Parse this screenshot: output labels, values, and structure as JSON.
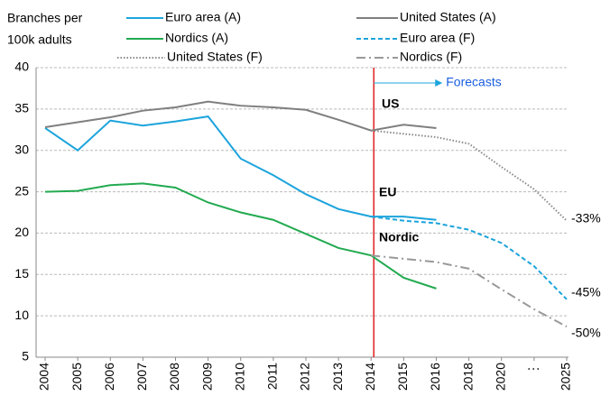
{
  "chart_data": {
    "type": "line",
    "y_axis_label": [
      "Branches per",
      "100k adults"
    ],
    "categories": [
      "2004",
      "2005",
      "2006",
      "2007",
      "2008",
      "2009",
      "2010",
      "2011",
      "2012",
      "2013",
      "2014",
      "2015",
      "2016",
      "2018",
      "2020",
      "⋮",
      "2025"
    ],
    "series": [
      {
        "name": "Euro area (A)",
        "color": "#1ca4dc",
        "dash": "solid",
        "values": [
          32.7,
          30,
          33.6,
          33,
          33.5,
          34.1,
          29,
          27,
          24.7,
          22.9,
          22,
          22,
          21.6,
          null,
          null,
          null,
          null
        ]
      },
      {
        "name": "United States (A)",
        "color": "#7f7f7f",
        "dash": "solid",
        "values": [
          32.8,
          33.4,
          34,
          34.8,
          35.2,
          35.9,
          35.4,
          35.2,
          34.9,
          33.7,
          32.4,
          33.1,
          32.7,
          null,
          null,
          null,
          null
        ]
      },
      {
        "name": "Nordics (A)",
        "color": "#22aa50",
        "dash": "solid",
        "values": [
          25,
          25.1,
          25.8,
          26,
          25.5,
          23.7,
          22.5,
          21.6,
          19.9,
          18.2,
          17.3,
          14.6,
          13.3,
          null,
          null,
          null,
          null
        ]
      },
      {
        "name": "Euro area (F)",
        "color": "#1ca4dc",
        "dash": "dashed",
        "values": [
          null,
          null,
          null,
          null,
          null,
          null,
          null,
          null,
          null,
          null,
          22,
          21.5,
          21.2,
          20.4,
          18.8,
          16,
          12
        ]
      },
      {
        "name": "United States (F)",
        "color": "#8a8a8a",
        "dash": "dotted",
        "values": [
          null,
          null,
          null,
          null,
          null,
          null,
          null,
          null,
          null,
          null,
          32.4,
          32,
          31.6,
          30.8,
          28,
          25.3,
          21.5
        ]
      },
      {
        "name": "Nordics (F)",
        "color": "#999999",
        "dash": "dashdot",
        "values": [
          null,
          null,
          null,
          null,
          null,
          null,
          null,
          null,
          null,
          null,
          17.3,
          16.9,
          16.5,
          15.7,
          13.2,
          10.8,
          8.7
        ]
      }
    ],
    "ylim": [
      5,
      40
    ],
    "yticks": [
      5,
      10,
      15,
      20,
      25,
      30,
      35,
      40
    ],
    "grid": true,
    "forecast_start": "2014",
    "forecast_label": "Forecasts",
    "annotations": [
      "US",
      "EU",
      "Nordic",
      "-33%",
      "-45%",
      "-50%"
    ]
  }
}
